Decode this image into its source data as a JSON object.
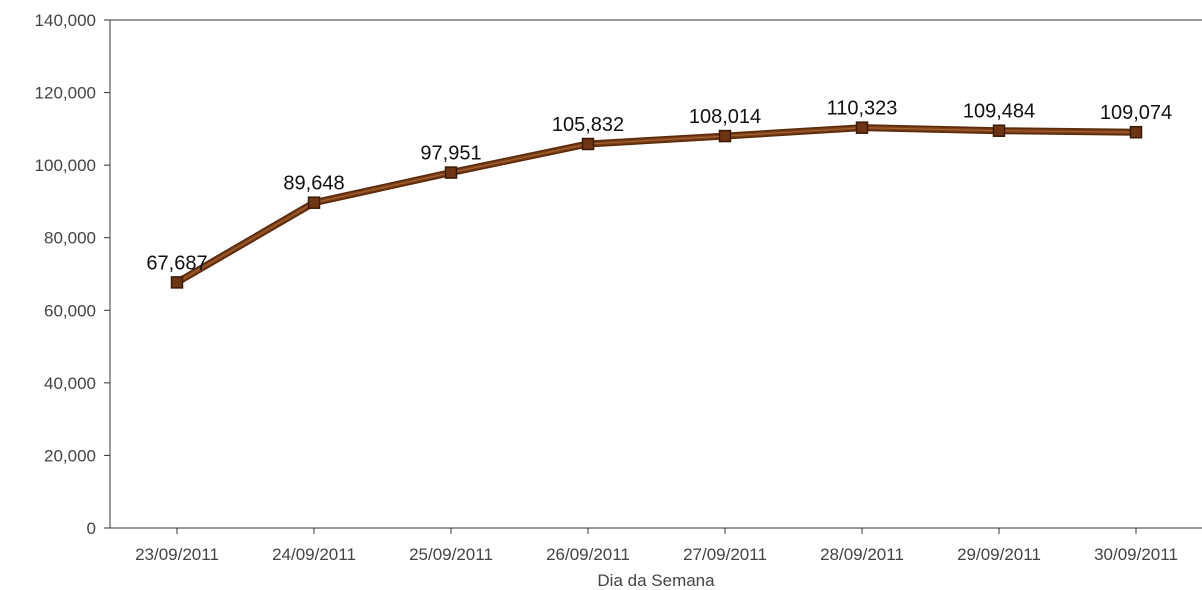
{
  "chart_data": {
    "type": "line",
    "title": "",
    "xlabel": "Dia da Semana",
    "ylabel": "",
    "categories": [
      "23/09/2011",
      "24/09/2011",
      "25/09/2011",
      "26/09/2011",
      "27/09/2011",
      "28/09/2011",
      "29/09/2011",
      "30/09/2011"
    ],
    "series": [
      {
        "values": [
          67687,
          89648,
          97951,
          105832,
          108014,
          110323,
          109484,
          109074
        ],
        "value_labels": [
          "67,687",
          "89,648",
          "97,951",
          "105,832",
          "108,014",
          "110,323",
          "109,484",
          "109,074"
        ],
        "color": "#7a3d16",
        "marker": "square"
      }
    ],
    "ylim": [
      0,
      140000
    ],
    "y_ticks": [
      0,
      20000,
      40000,
      60000,
      80000,
      100000,
      120000,
      140000
    ],
    "y_tick_labels": [
      "0",
      "20,000",
      "40,000",
      "60,000",
      "80,000",
      "100,000",
      "120,000",
      "140,000"
    ],
    "grid": false,
    "legend": "none"
  }
}
